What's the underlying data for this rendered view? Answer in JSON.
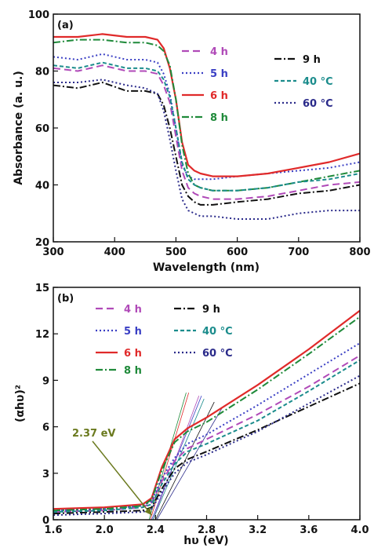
{
  "chart_data": [
    {
      "type": "line",
      "panel_label": "(a)",
      "xlabel": "Wavelength (nm)",
      "ylabel": "Absorbance (a. u.)",
      "xlim": [
        300,
        800
      ],
      "ylim": [
        20,
        100
      ],
      "xticks": [
        300,
        400,
        500,
        600,
        700,
        800
      ],
      "yticks": [
        20,
        40,
        60,
        80,
        100
      ],
      "legend_placement": "top-right",
      "series": [
        {
          "name": "4 h",
          "color": "#b04ab8",
          "dash": "dash",
          "x": [
            300,
            340,
            380,
            420,
            450,
            470,
            480,
            490,
            500,
            510,
            520,
            530,
            540,
            560,
            600,
            650,
            700,
            750,
            800
          ],
          "y": [
            81,
            80,
            82,
            80,
            80,
            79,
            75,
            69,
            57,
            45,
            39,
            37,
            36,
            35,
            35,
            36,
            38,
            40,
            41
          ]
        },
        {
          "name": "5 h",
          "color": "#3a3fc4",
          "dash": "dot",
          "x": [
            300,
            340,
            380,
            420,
            450,
            470,
            480,
            490,
            500,
            510,
            520,
            530,
            540,
            560,
            600,
            650,
            700,
            750,
            800
          ],
          "y": [
            85,
            84,
            86,
            84,
            84,
            83,
            79,
            72,
            60,
            47,
            43,
            42,
            42,
            42,
            43,
            44,
            45,
            46,
            48
          ]
        },
        {
          "name": "6 h",
          "color": "#e02a2a",
          "dash": "solid",
          "x": [
            300,
            340,
            380,
            420,
            450,
            470,
            480,
            490,
            500,
            510,
            520,
            530,
            540,
            560,
            600,
            650,
            700,
            750,
            800
          ],
          "y": [
            92,
            92,
            93,
            92,
            92,
            91,
            88,
            81,
            70,
            55,
            47,
            45,
            44,
            43,
            43,
            44,
            46,
            48,
            51
          ]
        },
        {
          "name": "8 h",
          "color": "#1f8a3a",
          "dash": "dashdot",
          "x": [
            300,
            340,
            380,
            420,
            450,
            470,
            480,
            490,
            500,
            510,
            520,
            530,
            540,
            560,
            600,
            650,
            700,
            750,
            800
          ],
          "y": [
            90,
            91,
            91,
            90,
            90,
            89,
            87,
            82,
            70,
            54,
            44,
            40,
            39,
            38,
            38,
            39,
            41,
            43,
            45
          ]
        },
        {
          "name": "9 h",
          "color": "#111111",
          "dash": "dashdot",
          "x": [
            300,
            340,
            380,
            420,
            450,
            470,
            480,
            490,
            500,
            510,
            520,
            530,
            540,
            560,
            600,
            650,
            700,
            750,
            800
          ],
          "y": [
            75,
            74,
            76,
            73,
            73,
            72,
            68,
            60,
            50,
            40,
            36,
            34,
            33,
            33,
            34,
            35,
            37,
            38,
            40
          ]
        },
        {
          "name": "40 °C",
          "color": "#1b8c8c",
          "dash": "shortdash",
          "x": [
            300,
            340,
            380,
            420,
            450,
            470,
            480,
            490,
            500,
            510,
            520,
            530,
            540,
            560,
            600,
            650,
            700,
            750,
            800
          ],
          "y": [
            82,
            81,
            83,
            81,
            81,
            80,
            77,
            71,
            60,
            48,
            42,
            40,
            39,
            38,
            38,
            39,
            41,
            42,
            44
          ]
        },
        {
          "name": "60 °C",
          "color": "#2a2a8a",
          "dash": "dot",
          "x": [
            300,
            340,
            380,
            420,
            450,
            470,
            480,
            490,
            500,
            510,
            520,
            530,
            540,
            560,
            600,
            650,
            700,
            750,
            800
          ],
          "y": [
            76,
            76,
            77,
            75,
            74,
            72,
            66,
            56,
            45,
            35,
            31,
            30,
            29,
            29,
            28,
            28,
            30,
            31,
            31
          ]
        }
      ]
    },
    {
      "type": "line",
      "panel_label": "(b)",
      "xlabel": "hυ (eV)",
      "ylabel": "(αhυ)²",
      "xlim": [
        1.6,
        4.0
      ],
      "ylim": [
        0,
        15
      ],
      "xticks": [
        "1.6",
        "2.0",
        "2.4",
        "2.8",
        "3.2",
        "3.6",
        "4.0"
      ],
      "yticks": [
        0,
        3,
        6,
        9,
        12,
        15
      ],
      "legend_placement": "top-left",
      "annotation": {
        "text": "2.37 eV",
        "x": 2.37,
        "y": 0.3
      },
      "series": [
        {
          "name": "4 h",
          "color": "#b04ab8",
          "dash": "dash",
          "x": [
            1.6,
            2.0,
            2.3,
            2.37,
            2.45,
            2.55,
            2.65,
            2.8,
            3.2,
            3.6,
            4.0
          ],
          "y": [
            0.5,
            0.6,
            0.8,
            1.1,
            2.5,
            3.8,
            4.6,
            5.2,
            6.8,
            8.6,
            10.6
          ]
        },
        {
          "name": "5 h",
          "color": "#3a3fc4",
          "dash": "dot",
          "x": [
            1.6,
            2.0,
            2.3,
            2.37,
            2.45,
            2.55,
            2.65,
            2.8,
            3.2,
            3.6,
            4.0
          ],
          "y": [
            0.6,
            0.7,
            0.9,
            1.2,
            2.7,
            4.0,
            4.9,
            5.5,
            7.4,
            9.4,
            11.4
          ]
        },
        {
          "name": "6 h",
          "color": "#e02a2a",
          "dash": "solid",
          "x": [
            1.6,
            2.0,
            2.3,
            2.37,
            2.45,
            2.55,
            2.65,
            2.8,
            3.2,
            3.6,
            4.0
          ],
          "y": [
            0.7,
            0.8,
            1.0,
            1.4,
            3.4,
            5.2,
            5.9,
            6.6,
            8.7,
            11.0,
            13.5
          ]
        },
        {
          "name": "8 h",
          "color": "#1f8a3a",
          "dash": "dashdot",
          "x": [
            1.6,
            2.0,
            2.3,
            2.37,
            2.45,
            2.55,
            2.65,
            2.8,
            3.2,
            3.6,
            4.0
          ],
          "y": [
            0.6,
            0.7,
            0.9,
            1.3,
            3.2,
            5.0,
            5.7,
            6.3,
            8.4,
            10.7,
            13.1
          ]
        },
        {
          "name": "9 h",
          "color": "#111111",
          "dash": "dashdot",
          "x": [
            1.6,
            2.0,
            2.3,
            2.37,
            2.45,
            2.55,
            2.65,
            2.8,
            3.2,
            3.6,
            4.0
          ],
          "y": [
            0.4,
            0.5,
            0.6,
            0.8,
            2.0,
            3.3,
            3.9,
            4.4,
            5.8,
            7.3,
            8.8
          ]
        },
        {
          "name": "40 °C",
          "color": "#1b8c8c",
          "dash": "shortdash",
          "x": [
            1.6,
            2.0,
            2.3,
            2.37,
            2.45,
            2.55,
            2.65,
            2.8,
            3.2,
            3.6,
            4.0
          ],
          "y": [
            0.5,
            0.6,
            0.8,
            1.0,
            2.3,
            3.6,
            4.4,
            4.9,
            6.4,
            8.3,
            10.3
          ]
        },
        {
          "name": "60 °C",
          "color": "#2a2a8a",
          "dash": "dot",
          "x": [
            1.6,
            2.0,
            2.3,
            2.37,
            2.45,
            2.55,
            2.65,
            2.8,
            3.2,
            3.6,
            4.0
          ],
          "y": [
            0.3,
            0.4,
            0.5,
            0.7,
            1.8,
            3.0,
            3.7,
            4.2,
            5.7,
            7.5,
            9.3
          ]
        }
      ]
    }
  ]
}
